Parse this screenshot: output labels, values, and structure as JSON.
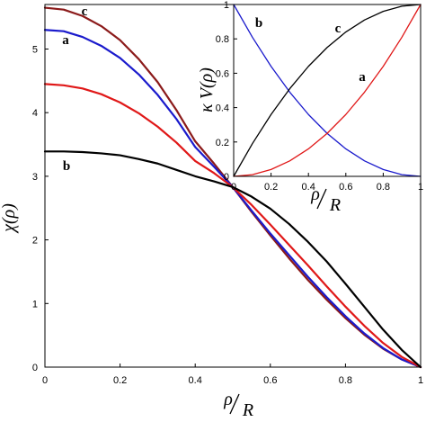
{
  "chart_data": [
    {
      "type": "line",
      "title": "",
      "xlabel": "ρ/R",
      "xlabel_parts": {
        "num": "ρ",
        "den": "R"
      },
      "ylabel": "χ(ρ)",
      "xlim": [
        0,
        1
      ],
      "ylim": [
        0,
        5.7
      ],
      "x_ticks": [
        0,
        0.2,
        0.4,
        0.6,
        0.8,
        1
      ],
      "x_tick_labels": [
        "0",
        "0.2",
        "0.4",
        "0.6",
        "0.8",
        "1"
      ],
      "y_ticks": [
        0,
        1,
        2,
        3,
        4,
        5
      ],
      "y_tick_labels": [
        "0",
        "1",
        "2",
        "3",
        "4",
        "5"
      ],
      "grid": false,
      "series": [
        {
          "name": "c",
          "color": "#8b1a1a",
          "x": [
            0,
            0.05,
            0.1,
            0.15,
            0.2,
            0.25,
            0.3,
            0.35,
            0.4,
            0.45,
            0.5,
            0.55,
            0.6,
            0.65,
            0.7,
            0.75,
            0.8,
            0.85,
            0.9,
            0.95,
            1
          ],
          "values": [
            5.65,
            5.62,
            5.52,
            5.36,
            5.14,
            4.84,
            4.48,
            4.04,
            3.55,
            3.2,
            2.83,
            2.44,
            2.07,
            1.71,
            1.37,
            1.06,
            0.77,
            0.51,
            0.29,
            0.12,
            0.0
          ]
        },
        {
          "name": "a",
          "color": "#1a1acc",
          "x": [
            0,
            0.05,
            0.1,
            0.15,
            0.2,
            0.25,
            0.3,
            0.35,
            0.4,
            0.45,
            0.5,
            0.55,
            0.6,
            0.65,
            0.7,
            0.75,
            0.8,
            0.85,
            0.9,
            0.95,
            1
          ],
          "values": [
            5.3,
            5.28,
            5.19,
            5.05,
            4.86,
            4.6,
            4.28,
            3.9,
            3.46,
            3.15,
            2.83,
            2.46,
            2.1,
            1.76,
            1.42,
            1.1,
            0.8,
            0.53,
            0.3,
            0.12,
            0.0
          ]
        },
        {
          "name": "",
          "color": "#e01818",
          "x": [
            0,
            0.05,
            0.1,
            0.15,
            0.2,
            0.25,
            0.3,
            0.35,
            0.4,
            0.45,
            0.5,
            0.55,
            0.6,
            0.65,
            0.7,
            0.75,
            0.8,
            0.85,
            0.9,
            0.95,
            1
          ],
          "values": [
            4.45,
            4.43,
            4.38,
            4.29,
            4.16,
            3.99,
            3.78,
            3.53,
            3.24,
            3.05,
            2.83,
            2.55,
            2.24,
            1.92,
            1.6,
            1.27,
            0.95,
            0.65,
            0.38,
            0.16,
            0.0
          ]
        },
        {
          "name": "b",
          "color": "#000000",
          "x": [
            0,
            0.05,
            0.1,
            0.15,
            0.2,
            0.25,
            0.3,
            0.35,
            0.4,
            0.45,
            0.5,
            0.55,
            0.6,
            0.65,
            0.7,
            0.75,
            0.8,
            0.85,
            0.9,
            0.95,
            1
          ],
          "values": [
            3.39,
            3.39,
            3.38,
            3.36,
            3.33,
            3.27,
            3.2,
            3.1,
            3.0,
            2.92,
            2.83,
            2.68,
            2.49,
            2.25,
            1.97,
            1.66,
            1.31,
            0.95,
            0.59,
            0.27,
            0.0
          ]
        }
      ]
    },
    {
      "type": "line",
      "title": "",
      "xlabel": "ρ/R",
      "xlabel_parts": {
        "num": "ρ",
        "den": "R"
      },
      "ylabel": "κ V(ρ)",
      "xlim": [
        0,
        1
      ],
      "ylim": [
        0,
        1
      ],
      "x_ticks": [
        0,
        0.2,
        0.4,
        0.6,
        0.8,
        1
      ],
      "x_tick_labels": [
        "0",
        "0.2",
        "0.4",
        "0.6",
        "0.8",
        "1"
      ],
      "y_ticks": [
        0,
        0.2,
        0.4,
        0.6,
        0.8,
        1
      ],
      "y_tick_labels": [
        "0",
        "0.2",
        "0.4",
        "0.6",
        "0.8",
        "1"
      ],
      "grid": false,
      "series": [
        {
          "name": "b",
          "color": "#1a1acc",
          "x": [
            0,
            0.1,
            0.2,
            0.3,
            0.4,
            0.5,
            0.6,
            0.7,
            0.8,
            0.9,
            1
          ],
          "values": [
            1.0,
            0.81,
            0.64,
            0.49,
            0.36,
            0.25,
            0.16,
            0.09,
            0.04,
            0.01,
            0.0
          ]
        },
        {
          "name": "c",
          "color": "#000000",
          "x": [
            0,
            0.1,
            0.2,
            0.3,
            0.4,
            0.5,
            0.6,
            0.7,
            0.8,
            0.9,
            1
          ],
          "values": [
            0.0,
            0.19,
            0.36,
            0.51,
            0.64,
            0.75,
            0.84,
            0.91,
            0.96,
            0.99,
            1.0
          ]
        },
        {
          "name": "a",
          "color": "#e01818",
          "x": [
            0,
            0.1,
            0.2,
            0.3,
            0.4,
            0.5,
            0.6,
            0.7,
            0.8,
            0.9,
            1
          ],
          "values": [
            0.0,
            0.01,
            0.04,
            0.09,
            0.16,
            0.25,
            0.36,
            0.49,
            0.64,
            0.81,
            1.0
          ]
        }
      ]
    }
  ]
}
